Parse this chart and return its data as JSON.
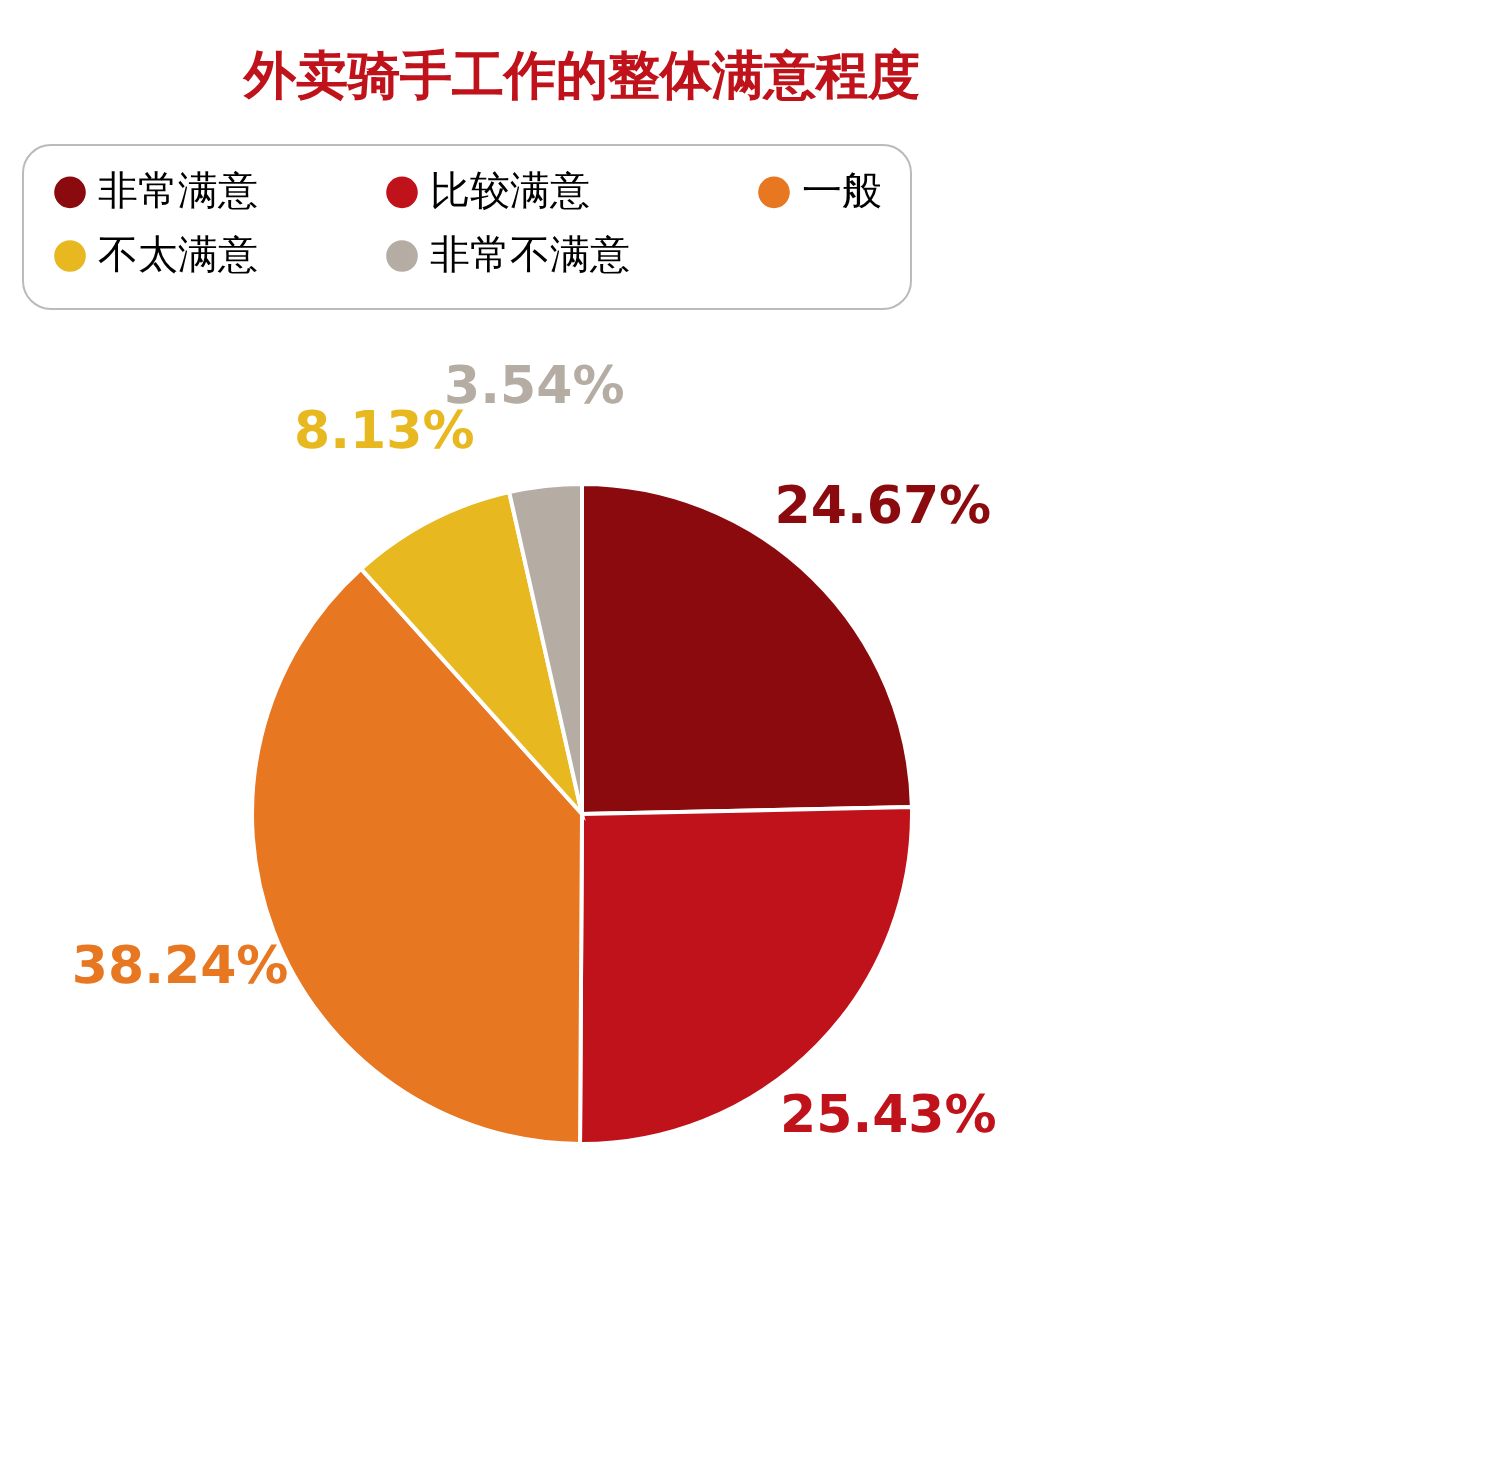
{
  "chart_data": {
    "type": "pie",
    "title": "外卖骑手工作的整体满意程度",
    "categories": [
      "非常满意",
      "比较满意",
      "一般",
      "不太满意",
      "非常不满意"
    ],
    "values": [
      24.67,
      25.43,
      38.24,
      8.13,
      3.54
    ],
    "colors": [
      "#8b0a0e",
      "#c0121a",
      "#e87722",
      "#e8b820",
      "#b5aca4"
    ],
    "value_labels": [
      "24.67%",
      "25.43%",
      "38.24%",
      "8.13%",
      "3.54%"
    ],
    "legend": "top"
  }
}
